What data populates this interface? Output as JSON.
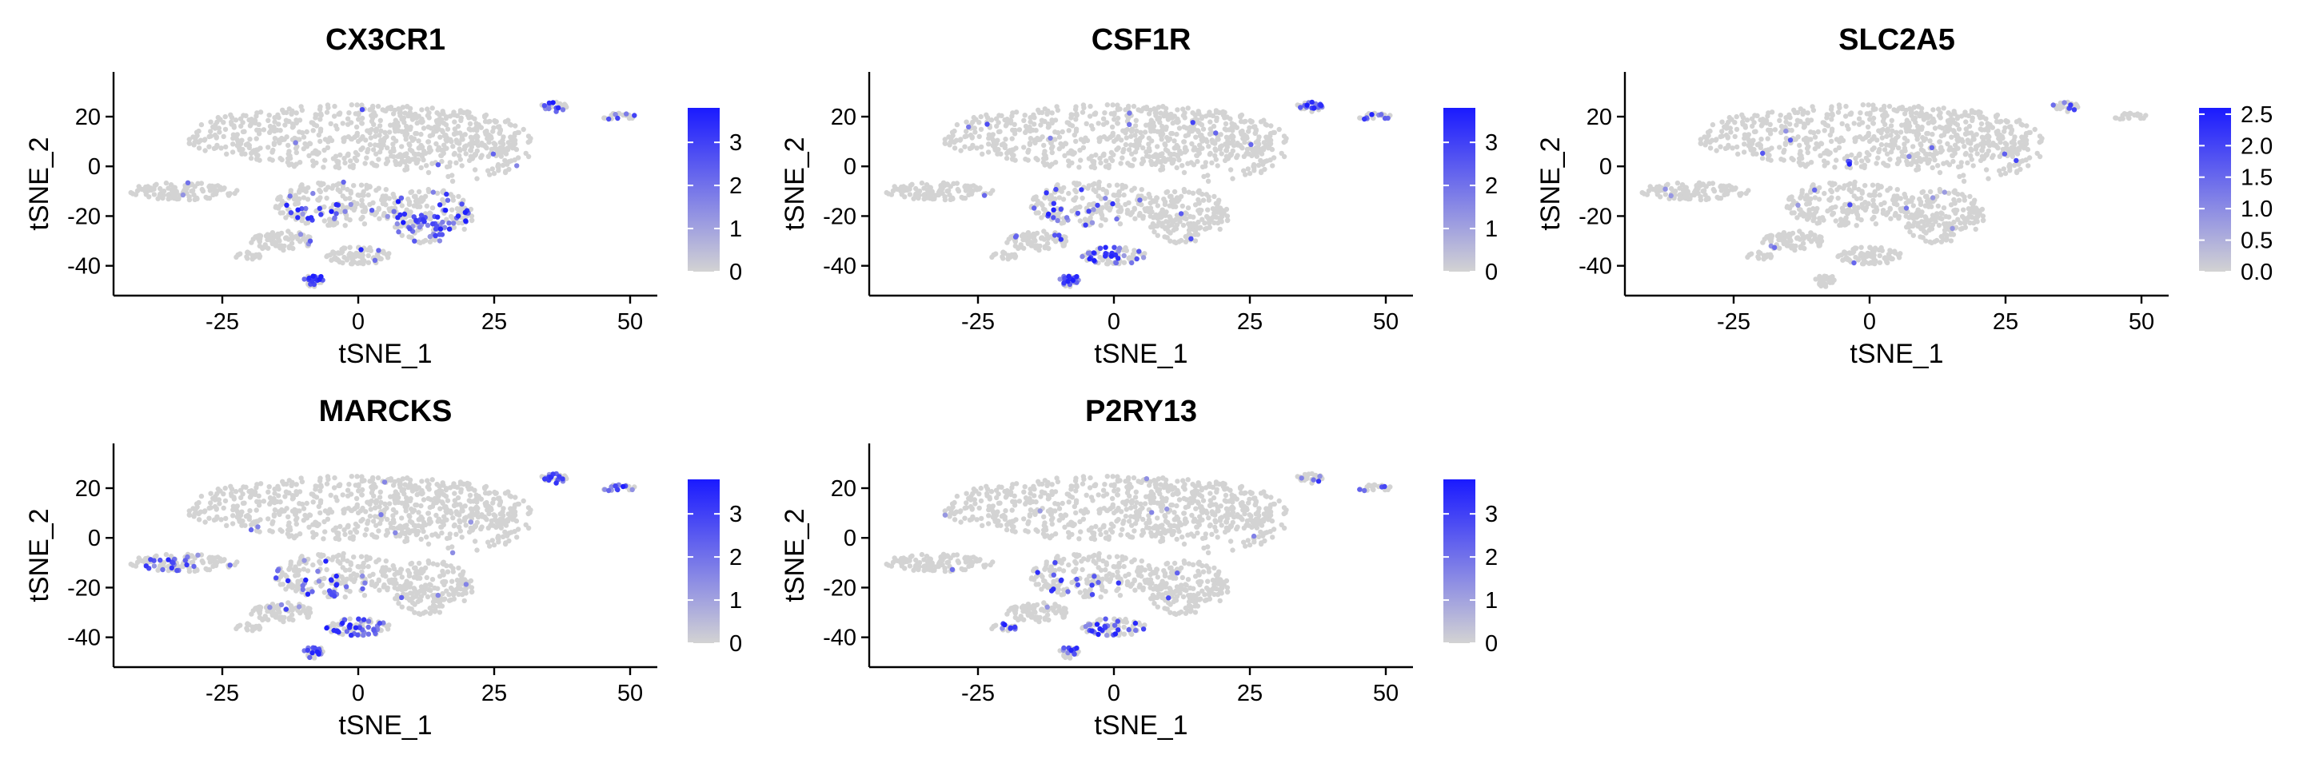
{
  "chart_data": [
    {
      "type": "scatter",
      "title": "CX3CR1",
      "xlabel": "tSNE_1",
      "ylabel": "tSNE_2",
      "xlim": [
        -45,
        55
      ],
      "ylim": [
        -52,
        38
      ],
      "xticks": [
        "-25",
        "0",
        "25",
        "50"
      ],
      "yticks": [
        "20",
        "0",
        "-20",
        "-40"
      ],
      "colorbar": {
        "min": 0,
        "max": 3.8,
        "ticks": [
          "0",
          "1",
          "2",
          "3"
        ],
        "low_color": "#d3d3d3",
        "high_color": "#1a1aff"
      },
      "hotspots": [
        {
          "x": 13,
          "y": -22,
          "spread": 6,
          "fraction": 0.55
        },
        {
          "x": -8,
          "y": -20,
          "spread": 5,
          "fraction": 0.35
        },
        {
          "x": -8,
          "y": -45,
          "spread": 2,
          "fraction": 0.7
        },
        {
          "x": 36,
          "y": 24,
          "spread": 2,
          "fraction": 0.5
        },
        {
          "x": 48,
          "y": 20,
          "spread": 2,
          "fraction": 0.4
        }
      ]
    },
    {
      "type": "scatter",
      "title": "CSF1R",
      "xlabel": "tSNE_1",
      "ylabel": "tSNE_2",
      "xlim": [
        -45,
        55
      ],
      "ylim": [
        -52,
        38
      ],
      "xticks": [
        "-25",
        "0",
        "25",
        "50"
      ],
      "yticks": [
        "20",
        "0",
        "-20",
        "-40"
      ],
      "colorbar": {
        "min": 0,
        "max": 3.8,
        "ticks": [
          "0",
          "1",
          "2",
          "3"
        ],
        "low_color": "#d3d3d3",
        "high_color": "#1a1aff"
      },
      "hotspots": [
        {
          "x": -2,
          "y": -35,
          "spread": 4,
          "fraction": 0.6
        },
        {
          "x": -10,
          "y": -18,
          "spread": 5,
          "fraction": 0.3
        },
        {
          "x": -8,
          "y": -45,
          "spread": 2,
          "fraction": 0.8
        },
        {
          "x": 37,
          "y": 24,
          "spread": 2,
          "fraction": 0.8
        },
        {
          "x": 48,
          "y": 20,
          "spread": 2,
          "fraction": 0.5
        }
      ]
    },
    {
      "type": "scatter",
      "title": "SLC2A5",
      "xlabel": "tSNE_1",
      "ylabel": "tSNE_2",
      "xlim": [
        -45,
        55
      ],
      "ylim": [
        -52,
        38
      ],
      "xticks": [
        "-25",
        "0",
        "25",
        "50"
      ],
      "yticks": [
        "20",
        "0",
        "-20",
        "-40"
      ],
      "colorbar": {
        "min": 0,
        "max": 2.6,
        "ticks": [
          "0.0",
          "0.5",
          "1.0",
          "1.5",
          "2.0",
          "2.5"
        ],
        "low_color": "#d3d3d3",
        "high_color": "#1a1aff"
      },
      "hotspots": [
        {
          "x": 36,
          "y": 24,
          "spread": 1.5,
          "fraction": 0.5
        },
        {
          "x": -4,
          "y": 2,
          "spread": 1,
          "fraction": 0.6
        },
        {
          "x": 12,
          "y": 0,
          "spread": 1,
          "fraction": 0.6
        }
      ]
    },
    {
      "type": "scatter",
      "title": "MARCKS",
      "xlabel": "tSNE_1",
      "ylabel": "tSNE_2",
      "xlim": [
        -45,
        55
      ],
      "ylim": [
        -52,
        38
      ],
      "xticks": [
        "-25",
        "0",
        "25",
        "50"
      ],
      "yticks": [
        "20",
        "0",
        "-20",
        "-40"
      ],
      "colorbar": {
        "min": 0,
        "max": 3.8,
        "ticks": [
          "0",
          "1",
          "2",
          "3"
        ],
        "low_color": "#d3d3d3",
        "high_color": "#1a1aff"
      },
      "hotspots": [
        {
          "x": -35,
          "y": -10,
          "spread": 5,
          "fraction": 0.4
        },
        {
          "x": 0,
          "y": -37,
          "spread": 4,
          "fraction": 0.6
        },
        {
          "x": -8,
          "y": -45,
          "spread": 2,
          "fraction": 0.8
        },
        {
          "x": 36,
          "y": 24,
          "spread": 2,
          "fraction": 0.6
        },
        {
          "x": 48,
          "y": 20,
          "spread": 2,
          "fraction": 0.5
        },
        {
          "x": -8,
          "y": -20,
          "spread": 6,
          "fraction": 0.2
        }
      ]
    },
    {
      "type": "scatter",
      "title": "P2RY13",
      "xlabel": "tSNE_1",
      "ylabel": "tSNE_2",
      "xlim": [
        -45,
        55
      ],
      "ylim": [
        -52,
        38
      ],
      "xticks": [
        "-25",
        "0",
        "25",
        "50"
      ],
      "yticks": [
        "20",
        "0",
        "-20",
        "-40"
      ],
      "colorbar": {
        "min": 0,
        "max": 3.8,
        "ticks": [
          "0",
          "1",
          "2",
          "3"
        ],
        "low_color": "#d3d3d3",
        "high_color": "#1a1aff"
      },
      "hotspots": [
        {
          "x": -2,
          "y": -36,
          "spread": 4,
          "fraction": 0.35
        },
        {
          "x": -8,
          "y": -45,
          "spread": 2,
          "fraction": 0.6
        },
        {
          "x": -20,
          "y": -36,
          "spread": 1.5,
          "fraction": 0.6
        },
        {
          "x": 37,
          "y": 24,
          "spread": 2,
          "fraction": 0.3
        },
        {
          "x": 48,
          "y": 20,
          "spread": 2,
          "fraction": 0.3
        },
        {
          "x": -8,
          "y": -20,
          "spread": 6,
          "fraction": 0.15
        }
      ]
    }
  ],
  "embedding_regions": [
    {
      "name": "upper-main",
      "cx": 0,
      "cy": 12,
      "rx": 32,
      "ry": 13,
      "weight": 0.36
    },
    {
      "name": "upper-right",
      "cx": 18,
      "cy": 8,
      "rx": 14,
      "ry": 14,
      "weight": 0.12
    },
    {
      "name": "left-tail",
      "cx": -32,
      "cy": -10,
      "rx": 10,
      "ry": 3.5,
      "weight": 0.07
    },
    {
      "name": "center",
      "cx": -4,
      "cy": -15,
      "rx": 12,
      "ry": 9,
      "weight": 0.12
    },
    {
      "name": "right-lower",
      "cx": 13,
      "cy": -20,
      "rx": 8,
      "ry": 11,
      "weight": 0.12
    },
    {
      "name": "lower-mid",
      "cx": 0,
      "cy": -36,
      "rx": 6,
      "ry": 3.5,
      "weight": 0.06
    },
    {
      "name": "lower-left",
      "cx": -14,
      "cy": -30,
      "rx": 6,
      "ry": 4,
      "weight": 0.05
    },
    {
      "name": "bottom-blob",
      "cx": -8,
      "cy": -46,
      "rx": 2,
      "ry": 2.5,
      "weight": 0.02
    },
    {
      "name": "island-1",
      "cx": 36,
      "cy": 24,
      "rx": 2.5,
      "ry": 2,
      "weight": 0.015
    },
    {
      "name": "island-2",
      "cx": 48,
      "cy": 20,
      "rx": 3,
      "ry": 1.5,
      "weight": 0.015
    },
    {
      "name": "tail-2",
      "cx": -20,
      "cy": -36,
      "rx": 3,
      "ry": 1.5,
      "weight": 0.015
    }
  ]
}
